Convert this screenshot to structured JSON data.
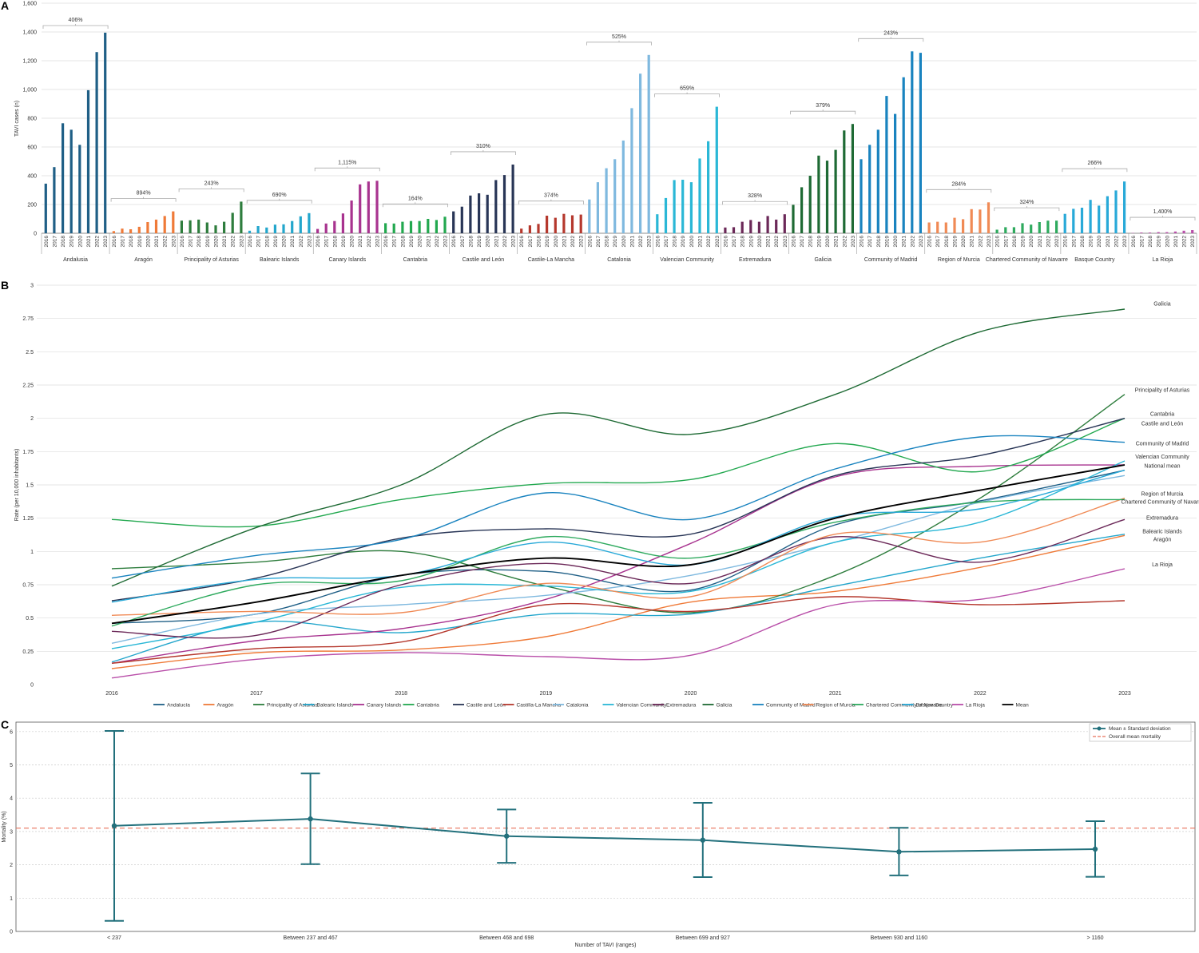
{
  "panels": [
    "A",
    "B",
    "C"
  ],
  "chart_data": [
    {
      "type": "bar",
      "title": "",
      "ylabel": "TAVI cases (n)",
      "ylim": [
        0,
        1400
      ],
      "yticks": [
        "0",
        "200",
        "400",
        "600",
        "800",
        "1,000",
        "1,200",
        "1,400",
        "1,600"
      ],
      "years": [
        "2016",
        "2017",
        "2018",
        "2019",
        "2020",
        "2021",
        "2022",
        "2023"
      ],
      "grid": true,
      "groups": [
        {
          "name": "Andalusia",
          "color": "#1f5f86",
          "growth": "406%",
          "values": [
            345,
            460,
            765,
            720,
            615,
            995,
            1260,
            1395
          ]
        },
        {
          "name": "Aragón",
          "color": "#ef7a38",
          "growth": "894%",
          "values": [
            15,
            32,
            28,
            45,
            78,
            95,
            120,
            152
          ]
        },
        {
          "name": "Principality of Asturias",
          "color": "#2e7d3d",
          "growth": "243%",
          "values": [
            88,
            90,
            95,
            75,
            55,
            80,
            142,
            220
          ]
        },
        {
          "name": "Balearic Islands",
          "color": "#23a6cc",
          "growth": "690%",
          "values": [
            18,
            50,
            40,
            60,
            62,
            85,
            118,
            140
          ]
        },
        {
          "name": "Canary Islands",
          "color": "#a8338f",
          "growth": "1,115%",
          "values": [
            30,
            68,
            85,
            138,
            228,
            340,
            360,
            365
          ]
        },
        {
          "name": "Cantabria",
          "color": "#22a84f",
          "growth": "164%",
          "values": [
            70,
            68,
            80,
            85,
            85,
            100,
            92,
            115
          ]
        },
        {
          "name": "Castile and León",
          "color": "#283556",
          "growth": "310%",
          "values": [
            152,
            185,
            262,
            278,
            268,
            370,
            405,
            478
          ]
        },
        {
          "name": "Castile-La Mancha",
          "color": "#b5382d",
          "growth": "374%",
          "values": [
            32,
            55,
            65,
            122,
            108,
            135,
            125,
            130
          ]
        },
        {
          "name": "Catalonia",
          "color": "#7fb9df",
          "growth": "525%",
          "values": [
            235,
            355,
            452,
            515,
            645,
            870,
            1110,
            1240
          ]
        },
        {
          "name": "Valencian Community",
          "color": "#2ab7d6",
          "growth": "659%",
          "values": [
            132,
            245,
            370,
            372,
            355,
            520,
            640,
            880
          ]
        },
        {
          "name": "Extremadura",
          "color": "#6b2858",
          "growth": "328%",
          "values": [
            40,
            42,
            80,
            92,
            80,
            120,
            95,
            132
          ]
        },
        {
          "name": "Galicia",
          "color": "#1e6a34",
          "growth": "379%",
          "values": [
            198,
            320,
            400,
            540,
            505,
            580,
            715,
            760
          ]
        },
        {
          "name": "Community of Madrid",
          "color": "#1983bf",
          "growth": "243%",
          "values": [
            515,
            615,
            720,
            955,
            830,
            1085,
            1265,
            1255
          ]
        },
        {
          "name": "Region of Murcia",
          "color": "#f08a55",
          "growth": "284%",
          "values": [
            75,
            80,
            75,
            108,
            98,
            168,
            165,
            215
          ]
        },
        {
          "name": "Chartered Community of Navarre",
          "color": "#2eaa5e",
          "growth": "324%",
          "values": [
            25,
            42,
            42,
            70,
            60,
            78,
            88,
            88
          ]
        },
        {
          "name": "Basque Country",
          "color": "#28a9d8",
          "growth": "266%",
          "values": [
            135,
            170,
            178,
            232,
            192,
            258,
            298,
            360
          ]
        },
        {
          "name": "La Rioja",
          "color": "#b94fa9",
          "growth": "1,400%",
          "values": [
            2,
            5,
            5,
            8,
            8,
            12,
            18,
            22
          ]
        }
      ]
    },
    {
      "type": "line",
      "ylabel": "Rate (per 10,000 inhabitants)",
      "ylim": [
        0,
        3
      ],
      "yticks": [
        "0",
        "0.25",
        "0.5",
        "0.75",
        "1",
        "1.25",
        "1.5",
        "1.75",
        "2",
        "2.25",
        "2.5",
        "2.75",
        "3"
      ],
      "x": [
        "2016",
        "2017",
        "2018",
        "2019",
        "2020",
        "2021",
        "2022",
        "2023"
      ],
      "grid": true,
      "series": [
        {
          "name": "Andalucia",
          "legend": "Andalucía",
          "color": "#1f5f86",
          "values": [
            0.46,
            0.53,
            0.82,
            0.85,
            0.71,
            1.2,
            1.38,
            1.61
          ]
        },
        {
          "name": "Aragón",
          "legend": "Aragón",
          "color": "#ef7a38",
          "values": [
            0.12,
            0.24,
            0.26,
            0.36,
            0.62,
            0.7,
            0.88,
            1.12
          ]
        },
        {
          "name": "Principality of Asturias",
          "legend": "Principality of Asturias",
          "color": "#2e7d3d",
          "values": [
            0.87,
            0.92,
            1.0,
            0.74,
            0.54,
            0.82,
            1.4,
            2.18
          ]
        },
        {
          "name": "Balearic Islands",
          "legend": "Balearic Islands",
          "color": "#23a6cc",
          "values": [
            0.17,
            0.47,
            0.39,
            0.53,
            0.53,
            0.74,
            0.95,
            1.13
          ]
        },
        {
          "name": "Canary Islands",
          "legend": "Canary Islands",
          "color": "#a8338f",
          "values": [
            0.16,
            0.33,
            0.42,
            0.64,
            1.06,
            1.56,
            1.64,
            1.65
          ]
        },
        {
          "name": "Cantabria",
          "legend": "Cantabria",
          "color": "#22a84f",
          "values": [
            1.24,
            1.19,
            1.39,
            1.51,
            1.54,
            1.81,
            1.6,
            2.0
          ]
        },
        {
          "name": "Castile and León",
          "legend": "Castile and León",
          "color": "#283556",
          "values": [
            0.63,
            0.8,
            1.1,
            1.17,
            1.13,
            1.57,
            1.72,
            2.0
          ]
        },
        {
          "name": "Castile-La Mancha",
          "legend": "Castilla-La Mancha",
          "color": "#b5382d",
          "values": [
            0.16,
            0.27,
            0.32,
            0.6,
            0.55,
            0.66,
            0.6,
            0.63
          ]
        },
        {
          "name": "Catalonia",
          "legend": "Catalonia",
          "color": "#7fb9df",
          "values": [
            0.31,
            0.53,
            0.6,
            0.67,
            0.82,
            1.07,
            1.37,
            1.57
          ]
        },
        {
          "name": "Valencian Community",
          "legend": "Valencian Community",
          "color": "#2ab7d6",
          "values": [
            0.27,
            0.47,
            0.73,
            0.74,
            0.7,
            1.07,
            1.22,
            1.68
          ]
        },
        {
          "name": "Extremadura",
          "legend": "Extremadura",
          "color": "#6b2858",
          "values": [
            0.4,
            0.37,
            0.75,
            0.91,
            0.76,
            1.11,
            0.92,
            1.24
          ]
        },
        {
          "name": "Galicia",
          "legend": "Galicia",
          "color": "#1e6a34",
          "values": [
            0.74,
            1.18,
            1.5,
            2.03,
            1.88,
            2.18,
            2.65,
            2.82
          ]
        },
        {
          "name": "Community of Madrid",
          "legend": "Community of Madrid",
          "color": "#1983bf",
          "values": [
            0.8,
            0.97,
            1.09,
            1.44,
            1.24,
            1.62,
            1.86,
            1.82
          ]
        },
        {
          "name": "Region of Murcia",
          "legend": "Region of Murcia",
          "color": "#f08a55",
          "values": [
            0.52,
            0.55,
            0.54,
            0.76,
            0.66,
            1.13,
            1.07,
            1.4
          ]
        },
        {
          "name": "Chartered Community of Navarre",
          "legend": "Chartered Community of Navarre",
          "color": "#2eaa5e",
          "values": [
            0.44,
            0.75,
            0.78,
            1.11,
            0.95,
            1.22,
            1.37,
            1.39
          ]
        },
        {
          "name": "Basque Country",
          "legend": "Basque Country",
          "color": "#28a9d8",
          "values": [
            0.62,
            0.79,
            0.82,
            1.07,
            0.9,
            1.26,
            1.32,
            1.61
          ]
        },
        {
          "name": "La Rioja",
          "legend": "La Rioja",
          "color": "#b94fa9",
          "values": [
            0.05,
            0.19,
            0.24,
            0.21,
            0.22,
            0.6,
            0.64,
            0.87
          ]
        },
        {
          "name": "Mean",
          "legend": "Mean",
          "color": "#000000",
          "values": [
            0.46,
            0.62,
            0.82,
            0.95,
            0.9,
            1.25,
            1.46,
            1.65
          ]
        }
      ],
      "end_labels": [
        {
          "text": "Galicia",
          "y": 2.86
        },
        {
          "text": "Principality of Asturias",
          "y": 2.21
        },
        {
          "text": "Cantabria",
          "y": 2.03
        },
        {
          "text": "Castile and León",
          "y": 1.96
        },
        {
          "text": "Community of Madrid",
          "y": 1.81
        },
        {
          "text": "Valencian Community",
          "y": 1.71
        },
        {
          "text": "National mean",
          "y": 1.64
        },
        {
          "text": "Region of Murcia",
          "y": 1.43
        },
        {
          "text": "Chartered Community of Navarre",
          "y": 1.37
        },
        {
          "text": "Extremadura",
          "y": 1.25
        },
        {
          "text": "Balearic Islands",
          "y": 1.15
        },
        {
          "text": "Aragón",
          "y": 1.09
        },
        {
          "text": "La Rioja",
          "y": 0.9
        }
      ]
    },
    {
      "type": "line",
      "subtype": "errorbar",
      "xlabel": "Number of TAVI (ranges)",
      "ylabel": "Mortality (%)",
      "ylim": [
        0,
        6.2
      ],
      "yticks": [
        "0",
        "1",
        "2",
        "3",
        "4",
        "5",
        "6"
      ],
      "categories": [
        "< 237",
        "Between 237 and 467",
        "Between 468 and 698",
        "Between 699 and 927",
        "Between 930 and 1160",
        "> 1160"
      ],
      "mean": [
        3.17,
        3.38,
        2.86,
        2.74,
        2.39,
        2.47
      ],
      "sd_low": [
        0.32,
        2.02,
        2.06,
        1.63,
        1.68,
        1.64
      ],
      "sd_high": [
        6.02,
        4.74,
        3.66,
        3.86,
        3.11,
        3.31
      ],
      "overall_mean": 3.1,
      "color": "#22707c",
      "overall_color": "#e8705a",
      "legend": [
        "Mean ± Standard deviation",
        "Overall mean mortality"
      ],
      "grid": true
    }
  ]
}
